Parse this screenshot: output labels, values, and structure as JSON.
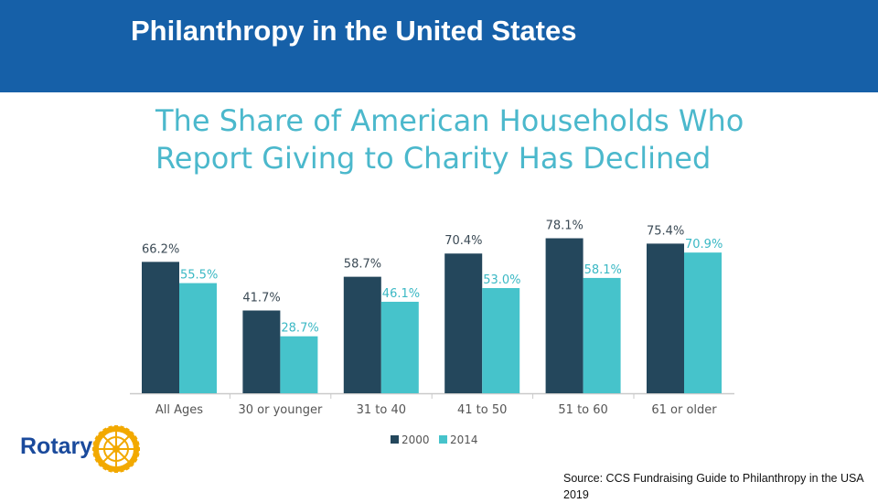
{
  "header": {
    "title": "Philanthropy in the United States"
  },
  "colors": {
    "header": "#1660a8",
    "series_2000": "#24475c",
    "series_2014": "#46c3cb",
    "title": "#4bb8cc",
    "rotary_blue": "#1a4a9c",
    "rotary_gold": "#f2a900"
  },
  "chart_data": {
    "type": "bar",
    "title_lines": [
      "The Share of American Households Who",
      "Report Giving to Charity Has Declined"
    ],
    "categories": [
      "All Ages",
      "30 or younger",
      "31 to 40",
      "41 to 50",
      "51 to 60",
      "61 or older"
    ],
    "series": [
      {
        "name": "2000",
        "values": [
          66.2,
          41.7,
          58.7,
          70.4,
          78.1,
          75.4
        ],
        "labels": [
          "66.2%",
          "41.7%",
          "58.7%",
          "70.4%",
          "78.1%",
          "75.4%"
        ]
      },
      {
        "name": "2014",
        "values": [
          55.5,
          28.7,
          46.1,
          53.0,
          58.1,
          70.9
        ],
        "labels": [
          "55.5%",
          "28.7%",
          "46.1%",
          "53.0%",
          "58.1%",
          "70.9%"
        ]
      }
    ],
    "xlabel": "",
    "ylabel": "",
    "ylim": [
      0,
      100
    ],
    "legend": "bottom",
    "grid": false
  },
  "source": {
    "text": "Source: CCS Fundraising Guide to Philanthropy in the USA 2019"
  },
  "logo": {
    "text": "Rotary",
    "icon": "rotary-wheel-icon"
  }
}
